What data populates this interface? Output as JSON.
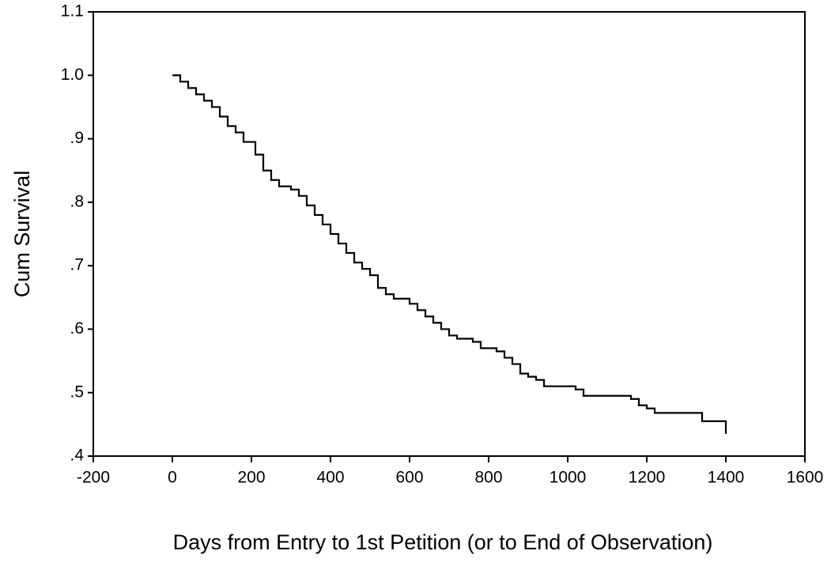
{
  "chart_data": {
    "type": "line",
    "step": true,
    "x_label": "Days from Entry to 1st Petition (or to End of Observation)",
    "y_label": "Cum Survival",
    "xlim": [
      -200,
      1600
    ],
    "xticks": [
      -200,
      0,
      200,
      400,
      600,
      800,
      1000,
      1200,
      1400,
      1600
    ],
    "ylim": [
      0.4,
      1.1
    ],
    "yticks": [
      {
        "value": 0.4,
        "label": ".4"
      },
      {
        "value": 0.5,
        "label": ".5"
      },
      {
        "value": 0.6,
        "label": ".6"
      },
      {
        "value": 0.7,
        "label": ".7"
      },
      {
        "value": 0.8,
        "label": ".8"
      },
      {
        "value": 0.9,
        "label": ".9"
      },
      {
        "value": 1.0,
        "label": "1.0"
      },
      1.1
    ],
    "color": "#000000",
    "x": [
      0,
      20,
      40,
      60,
      80,
      100,
      120,
      140,
      160,
      180,
      210,
      230,
      250,
      270,
      300,
      320,
      340,
      360,
      380,
      400,
      420,
      440,
      460,
      480,
      500,
      520,
      540,
      560,
      600,
      620,
      640,
      660,
      680,
      700,
      720,
      760,
      780,
      820,
      840,
      860,
      880,
      900,
      920,
      940,
      1020,
      1040,
      1160,
      1180,
      1200,
      1220,
      1340,
      1400
    ],
    "values": [
      1.0,
      0.99,
      0.98,
      0.97,
      0.96,
      0.95,
      0.935,
      0.92,
      0.91,
      0.895,
      0.875,
      0.85,
      0.835,
      0.825,
      0.82,
      0.81,
      0.795,
      0.78,
      0.765,
      0.75,
      0.735,
      0.72,
      0.705,
      0.695,
      0.685,
      0.665,
      0.655,
      0.648,
      0.64,
      0.63,
      0.62,
      0.61,
      0.6,
      0.59,
      0.585,
      0.58,
      0.57,
      0.565,
      0.555,
      0.545,
      0.53,
      0.525,
      0.52,
      0.51,
      0.505,
      0.495,
      0.49,
      0.48,
      0.475,
      0.468,
      0.455,
      0.435
    ]
  }
}
